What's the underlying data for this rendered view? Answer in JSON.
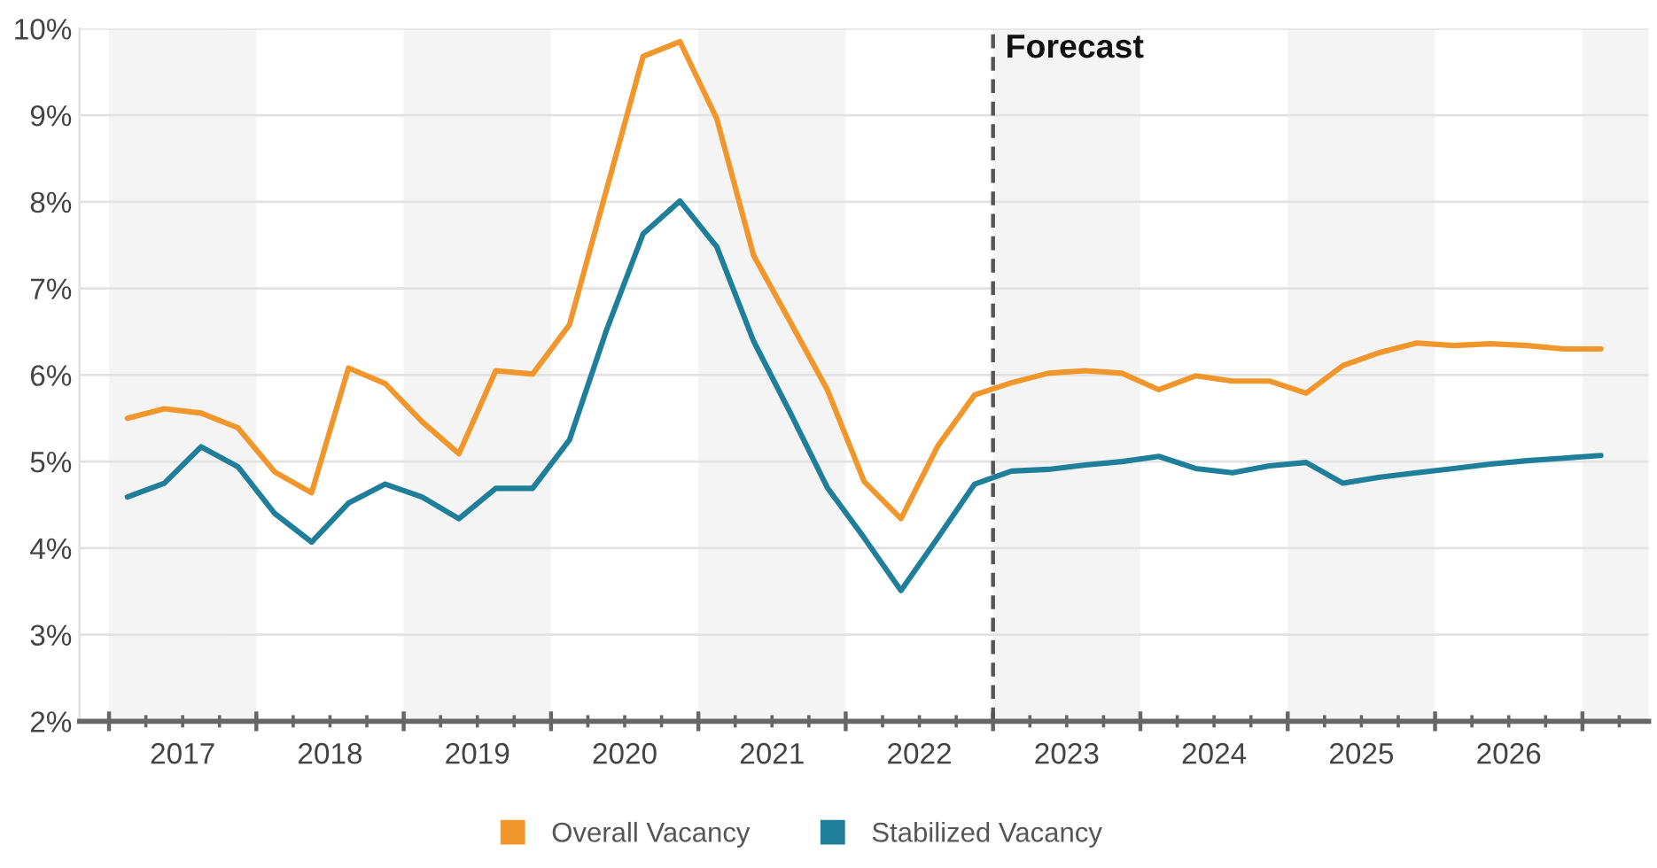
{
  "chart_data": {
    "type": "line",
    "x": [
      2017.125,
      2017.375,
      2017.625,
      2017.875,
      2018.125,
      2018.375,
      2018.625,
      2018.875,
      2019.125,
      2019.375,
      2019.625,
      2019.875,
      2020.125,
      2020.375,
      2020.625,
      2020.875,
      2021.125,
      2021.375,
      2021.625,
      2021.875,
      2022.125,
      2022.375,
      2022.625,
      2022.875,
      2023.125,
      2023.375,
      2023.625,
      2023.875,
      2024.125,
      2024.375,
      2024.625,
      2024.875,
      2025.125,
      2025.375,
      2025.625,
      2025.875,
      2026.125,
      2026.375,
      2026.625,
      2026.875,
      2027.125
    ],
    "series": [
      {
        "name": "Overall Vacancy",
        "color": "#f0962b",
        "values": [
          5.5,
          5.61,
          5.56,
          5.39,
          4.88,
          4.64,
          6.08,
          5.9,
          5.46,
          5.09,
          6.05,
          6.01,
          6.58,
          8.13,
          9.68,
          9.85,
          8.96,
          7.38,
          6.61,
          5.83,
          4.77,
          4.34,
          5.18,
          5.77,
          5.91,
          6.02,
          6.05,
          6.02,
          5.83,
          5.99,
          5.93,
          5.93,
          5.79,
          6.11,
          6.26,
          6.37,
          6.34,
          6.36,
          6.34,
          6.3,
          6.3
        ]
      },
      {
        "name": "Stabilized Vacancy",
        "color": "#1f7f9a",
        "values": [
          4.59,
          4.75,
          5.17,
          4.94,
          4.4,
          4.07,
          4.52,
          4.74,
          4.59,
          4.34,
          4.69,
          4.69,
          5.25,
          6.51,
          7.63,
          8.01,
          7.48,
          6.39,
          5.56,
          4.7,
          4.12,
          3.51,
          4.12,
          4.74,
          4.89,
          4.91,
          4.96,
          5.0,
          5.06,
          4.92,
          4.87,
          4.95,
          4.99,
          4.75,
          4.82,
          4.87,
          4.92,
          4.97,
          5.01,
          5.04,
          5.07
        ]
      }
    ],
    "xlim": [
      2016.8,
      2027.45
    ],
    "xticks": [
      {
        "value": 2017,
        "label": null
      },
      {
        "value": 2017.25,
        "label": null
      },
      {
        "value": 2017.5,
        "label": "2017"
      },
      {
        "value": 2017.75,
        "label": null
      },
      {
        "value": 2018,
        "label": null
      },
      {
        "value": 2018.25,
        "label": null
      },
      {
        "value": 2018.5,
        "label": "2018"
      },
      {
        "value": 2018.75,
        "label": null
      },
      {
        "value": 2019,
        "label": null
      },
      {
        "value": 2019.25,
        "label": null
      },
      {
        "value": 2019.5,
        "label": "2019"
      },
      {
        "value": 2019.75,
        "label": null
      },
      {
        "value": 2020,
        "label": null
      },
      {
        "value": 2020.25,
        "label": null
      },
      {
        "value": 2020.5,
        "label": "2020"
      },
      {
        "value": 2020.75,
        "label": null
      },
      {
        "value": 2021,
        "label": null
      },
      {
        "value": 2021.25,
        "label": null
      },
      {
        "value": 2021.5,
        "label": "2021"
      },
      {
        "value": 2021.75,
        "label": null
      },
      {
        "value": 2022,
        "label": null
      },
      {
        "value": 2022.25,
        "label": null
      },
      {
        "value": 2022.5,
        "label": "2022"
      },
      {
        "value": 2022.75,
        "label": null
      },
      {
        "value": 2023,
        "label": null
      },
      {
        "value": 2023.25,
        "label": null
      },
      {
        "value": 2023.5,
        "label": "2023"
      },
      {
        "value": 2023.75,
        "label": null
      },
      {
        "value": 2024,
        "label": null
      },
      {
        "value": 2024.25,
        "label": null
      },
      {
        "value": 2024.5,
        "label": "2024"
      },
      {
        "value": 2024.75,
        "label": null
      },
      {
        "value": 2025,
        "label": null
      },
      {
        "value": 2025.25,
        "label": null
      },
      {
        "value": 2025.5,
        "label": "2025"
      },
      {
        "value": 2025.75,
        "label": null
      },
      {
        "value": 2026,
        "label": null
      },
      {
        "value": 2026.25,
        "label": null
      },
      {
        "value": 2026.5,
        "label": "2026"
      },
      {
        "value": 2026.75,
        "label": null
      },
      {
        "value": 2027,
        "label": null
      },
      {
        "value": 2027.25,
        "label": null
      }
    ],
    "ylim": [
      2,
      10
    ],
    "yticks": [
      {
        "value": 2,
        "label": "2%"
      },
      {
        "value": 3,
        "label": "3%"
      },
      {
        "value": 4,
        "label": "4%"
      },
      {
        "value": 5,
        "label": "5%"
      },
      {
        "value": 6,
        "label": "6%"
      },
      {
        "value": 7,
        "label": "7%"
      },
      {
        "value": 8,
        "label": "8%"
      },
      {
        "value": 9,
        "label": "9%"
      },
      {
        "value": 10,
        "label": "10%"
      }
    ],
    "grid": "y",
    "legend": "bottom",
    "ref_lines": [
      {
        "axis": "x",
        "value": 2023,
        "label": "Forecast",
        "color": "#555555",
        "line_style": "dashed"
      }
    ],
    "bands": [
      {
        "axis": "x",
        "from": 2017,
        "to": 2018,
        "color": "#f4f4f4"
      },
      {
        "axis": "x",
        "from": 2019,
        "to": 2020,
        "color": "#f4f4f4"
      },
      {
        "axis": "x",
        "from": 2021,
        "to": 2022,
        "color": "#f4f4f4"
      },
      {
        "axis": "x",
        "from": 2023,
        "to": 2024,
        "color": "#f4f4f4"
      },
      {
        "axis": "x",
        "from": 2025,
        "to": 2026,
        "color": "#f4f4f4"
      },
      {
        "axis": "x",
        "from": 2027,
        "to": 2027.45,
        "color": "#f4f4f4"
      }
    ]
  }
}
